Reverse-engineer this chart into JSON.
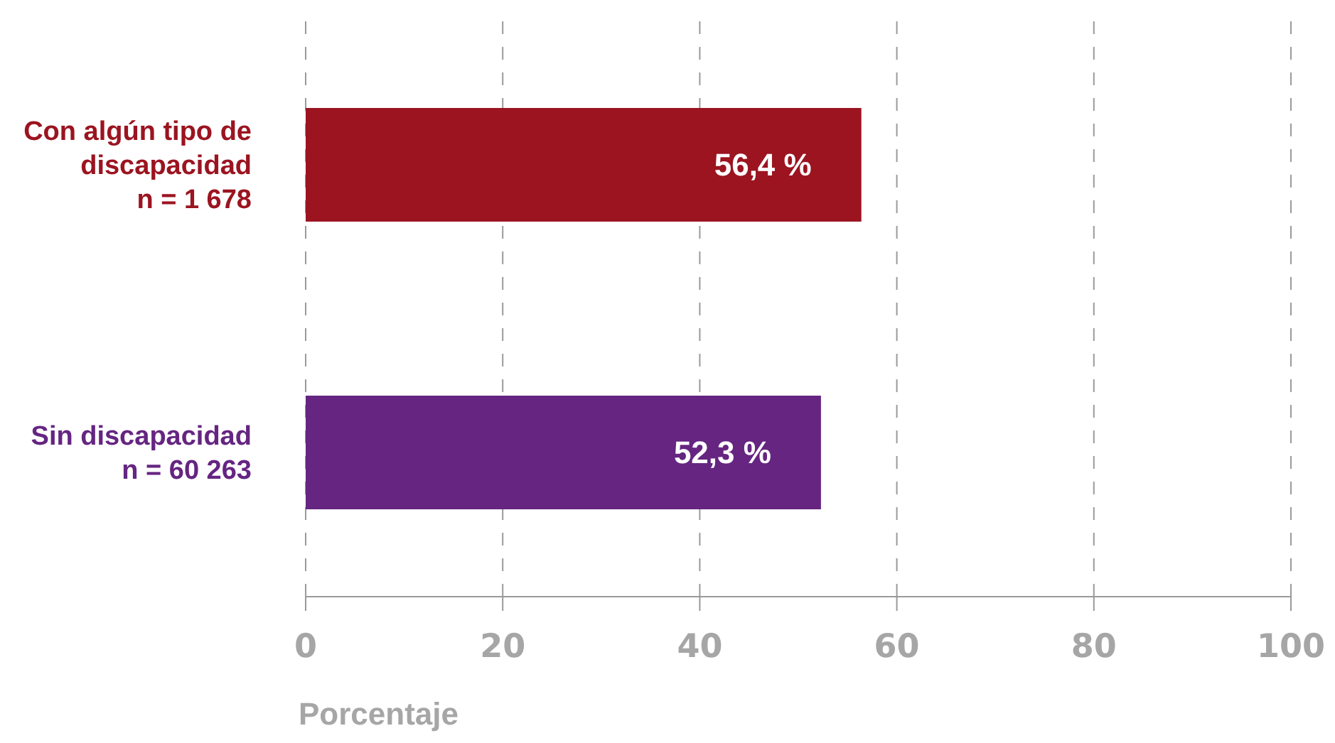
{
  "chart_data": {
    "type": "bar",
    "orientation": "horizontal",
    "categories": [
      "Con algún tipo de\ndiscapacidad\nn = 1 678",
      "Sin discapacidad\nn = 60 263"
    ],
    "values": [
      56.4,
      52.3
    ],
    "colors": [
      "#9b1420",
      "#652581"
    ],
    "value_labels": [
      "56,4 %",
      "52,3 %"
    ],
    "xlim": [
      0,
      100
    ],
    "xticks": [
      0,
      20,
      40,
      60,
      80,
      100
    ],
    "xlabel": "Porcentaje",
    "grid": "x"
  }
}
